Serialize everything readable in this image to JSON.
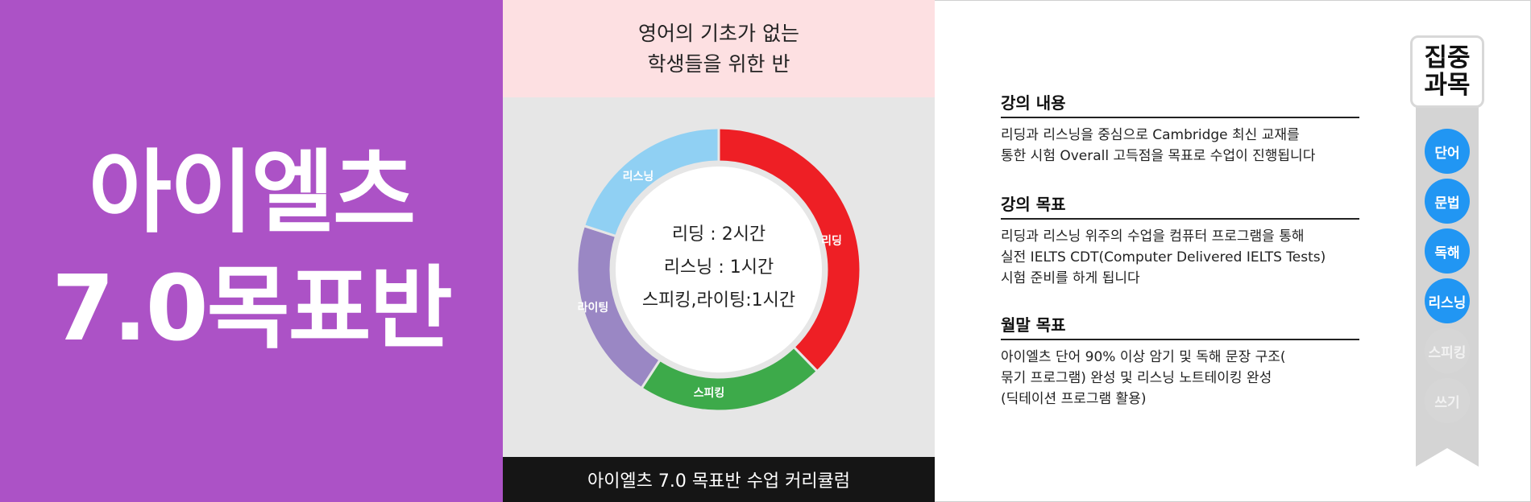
{
  "hero": {
    "line1": "아이엘츠",
    "line2": "7.0목표반"
  },
  "curriculum": {
    "header_line1": "영어의 기초가 없는",
    "header_line2": "학생들을 위한 반",
    "footer": "아이엘츠 7.0 목표반 수업 커리큘럼",
    "center_lines": [
      "리딩 : 2시간",
      "리스닝 : 1시간",
      "스피킹,라이팅:1시간"
    ],
    "segments": [
      {
        "label": "리딩",
        "color": "#ee1f25"
      },
      {
        "label": "스피킹",
        "color": "#3daa4a"
      },
      {
        "label": "라이팅",
        "color": "#9a87c4"
      },
      {
        "label": "리스닝",
        "color": "#90d0f3"
      }
    ]
  },
  "sections": [
    {
      "heading": "강의 내용",
      "lines": [
        "리딩과 리스닝을 중심으로 Cambridge 최신 교재를",
        "통한 시험 Overall 고득점을 목표로 수업이 진행됩니다"
      ]
    },
    {
      "heading": "강의  목표",
      "lines": [
        "리딩과 리스닝 위주의 수업을 컴퓨터 프로그램을 통해",
        "실전 IELTS CDT(Computer Delivered IELTS Tests)",
        "시험 준비를 하게 됩니다"
      ]
    },
    {
      "heading": "월말  목표",
      "lines": [
        "아이엘츠 단어 90% 이상 암기 및 독해 문장 구조(",
        "묶기 프로그램) 완성 및 리스닝 노트테이킹 완성",
        "(딕테이션 프로그램 활용)"
      ]
    }
  ],
  "focus": {
    "title_line1": "집중",
    "title_line2": "과목",
    "subjects": [
      {
        "label": "단어",
        "active": true
      },
      {
        "label": "문법",
        "active": true
      },
      {
        "label": "독해",
        "active": true
      },
      {
        "label": "리스닝",
        "active": true
      },
      {
        "label": "스피킹",
        "active": false
      },
      {
        "label": "쓰기",
        "active": false
      }
    ],
    "active_color": "#2196f3",
    "inactive_color": "#d6d6d6"
  }
}
